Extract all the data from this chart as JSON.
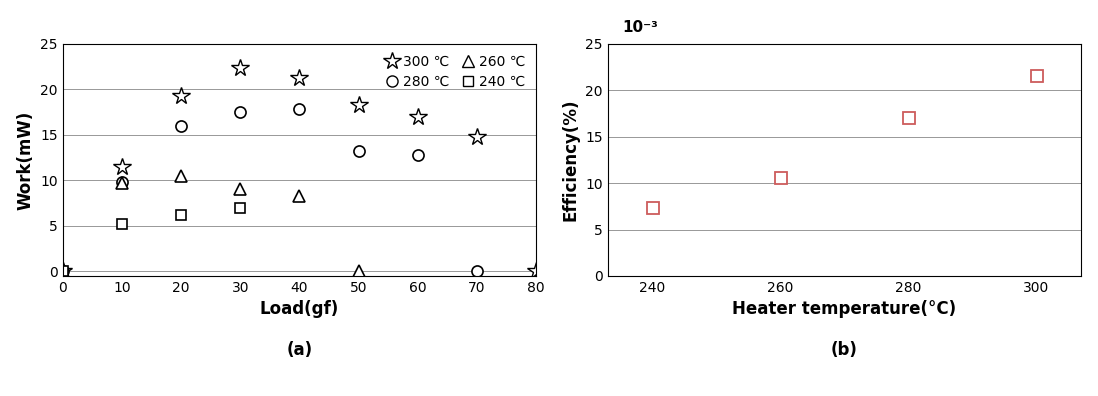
{
  "left": {
    "series_300": {
      "x": [
        0,
        10,
        20,
        30,
        40,
        50,
        60,
        70,
        80
      ],
      "y": [
        0,
        11.5,
        19.3,
        22.3,
        21.3,
        18.3,
        17.0,
        14.8,
        0
      ],
      "marker": "*",
      "label": "300 ℃",
      "color": "#000000",
      "markersize": 13,
      "markerfacecolor": "white"
    },
    "series_280": {
      "x": [
        0,
        10,
        20,
        30,
        40,
        50,
        60,
        70
      ],
      "y": [
        0,
        9.8,
        16.0,
        17.5,
        17.8,
        13.2,
        12.8,
        0
      ],
      "marker": "o",
      "label": "280 ℃",
      "color": "#000000",
      "markersize": 8,
      "markerfacecolor": "white"
    },
    "series_260": {
      "x": [
        0,
        10,
        20,
        30,
        40,
        50
      ],
      "y": [
        0,
        9.7,
        10.5,
        9.0,
        8.3,
        0
      ],
      "marker": "^",
      "label": "260 ℃",
      "color": "#000000",
      "markersize": 8,
      "markerfacecolor": "white"
    },
    "series_240": {
      "x": [
        0,
        10,
        20,
        30
      ],
      "y": [
        0,
        5.2,
        6.2,
        7.0
      ],
      "marker": "s",
      "label": "240 ℃",
      "color": "#000000",
      "markersize": 7,
      "markerfacecolor": "white"
    },
    "xlabel": "Load(gf)",
    "ylabel": "Work(mW)",
    "xlim": [
      0,
      80
    ],
    "ylim": [
      -0.5,
      25
    ],
    "yticks": [
      0,
      5,
      10,
      15,
      20,
      25
    ],
    "xticks": [
      0,
      10,
      20,
      30,
      40,
      50,
      60,
      70,
      80
    ],
    "subplot_label": "(a)"
  },
  "right": {
    "x": [
      240,
      260,
      280,
      300
    ],
    "y": [
      7.3,
      10.6,
      17.0,
      21.5
    ],
    "marker": "s",
    "color": "#cd5c5c",
    "markersize": 9,
    "markerfacecolor": "white",
    "xlabel": "Heater temperature(°C)",
    "ylabel": "Efficiency(%)",
    "xlim": [
      233,
      307
    ],
    "ylim": [
      0,
      25
    ],
    "yticks": [
      0,
      5,
      10,
      15,
      20,
      25
    ],
    "xticks": [
      240,
      260,
      280,
      300
    ],
    "scale_label": "10⁻³",
    "subplot_label": "(b)"
  }
}
